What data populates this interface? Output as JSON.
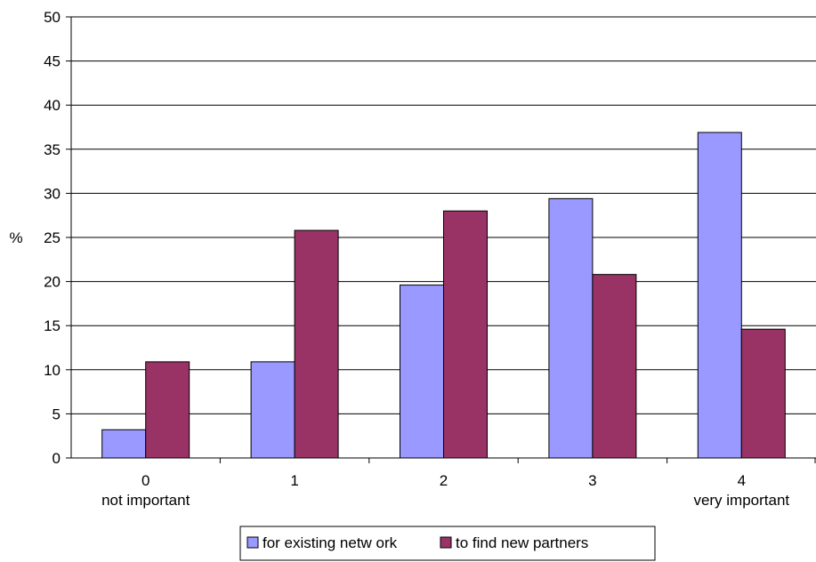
{
  "chart_data": {
    "type": "bar",
    "title": "",
    "xlabel": "",
    "ylabel": "%",
    "ylim": [
      0,
      50
    ],
    "yticks": [
      0,
      5,
      10,
      15,
      20,
      25,
      30,
      35,
      40,
      45,
      50
    ],
    "grid": true,
    "legend_position": "bottom",
    "categories": [
      "0",
      "1",
      "2",
      "3",
      "4"
    ],
    "category_sublabels": [
      "not important",
      "",
      "",
      "",
      "very important"
    ],
    "series": [
      {
        "name": "for existing netw ork",
        "values": [
          3.2,
          10.9,
          19.6,
          29.4,
          36.9
        ],
        "color": "#9999ff"
      },
      {
        "name": "to find new  partners",
        "values": [
          10.9,
          25.8,
          28.0,
          20.8,
          14.6
        ],
        "color": "#993366"
      }
    ]
  }
}
